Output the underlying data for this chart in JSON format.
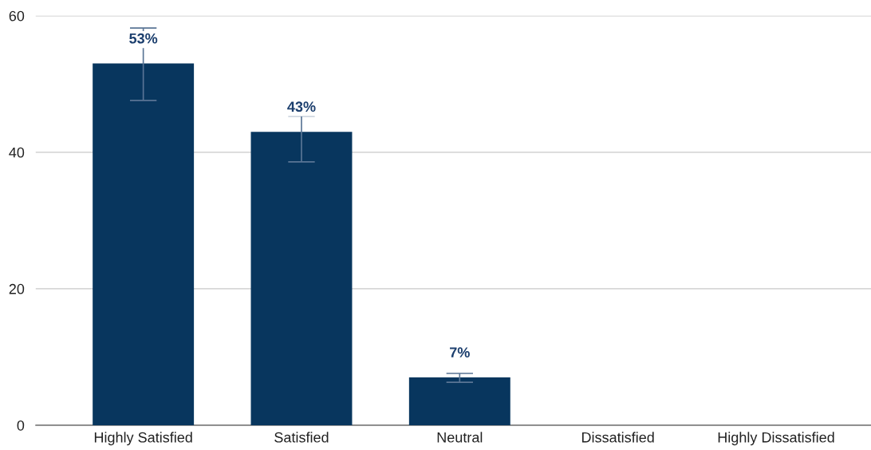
{
  "chart_data": {
    "type": "bar",
    "categories": [
      "Highly Satisfied",
      "Satisfied",
      "Neutral",
      "Dissatisfied",
      "Highly Dissatisfied"
    ],
    "values": [
      53,
      43,
      7,
      0,
      0
    ],
    "color": "#08365e",
    "errors": [
      [
        47.6,
        58.2
      ],
      [
        38.6,
        45.3
      ],
      [
        6.3,
        7.6
      ],
      null,
      null
    ],
    "value_labels": [
      "53%",
      "43%",
      "7%",
      null,
      null
    ],
    "ylim": [
      0,
      60
    ],
    "yticks": [
      0,
      20,
      40,
      60
    ],
    "grid": "y"
  }
}
